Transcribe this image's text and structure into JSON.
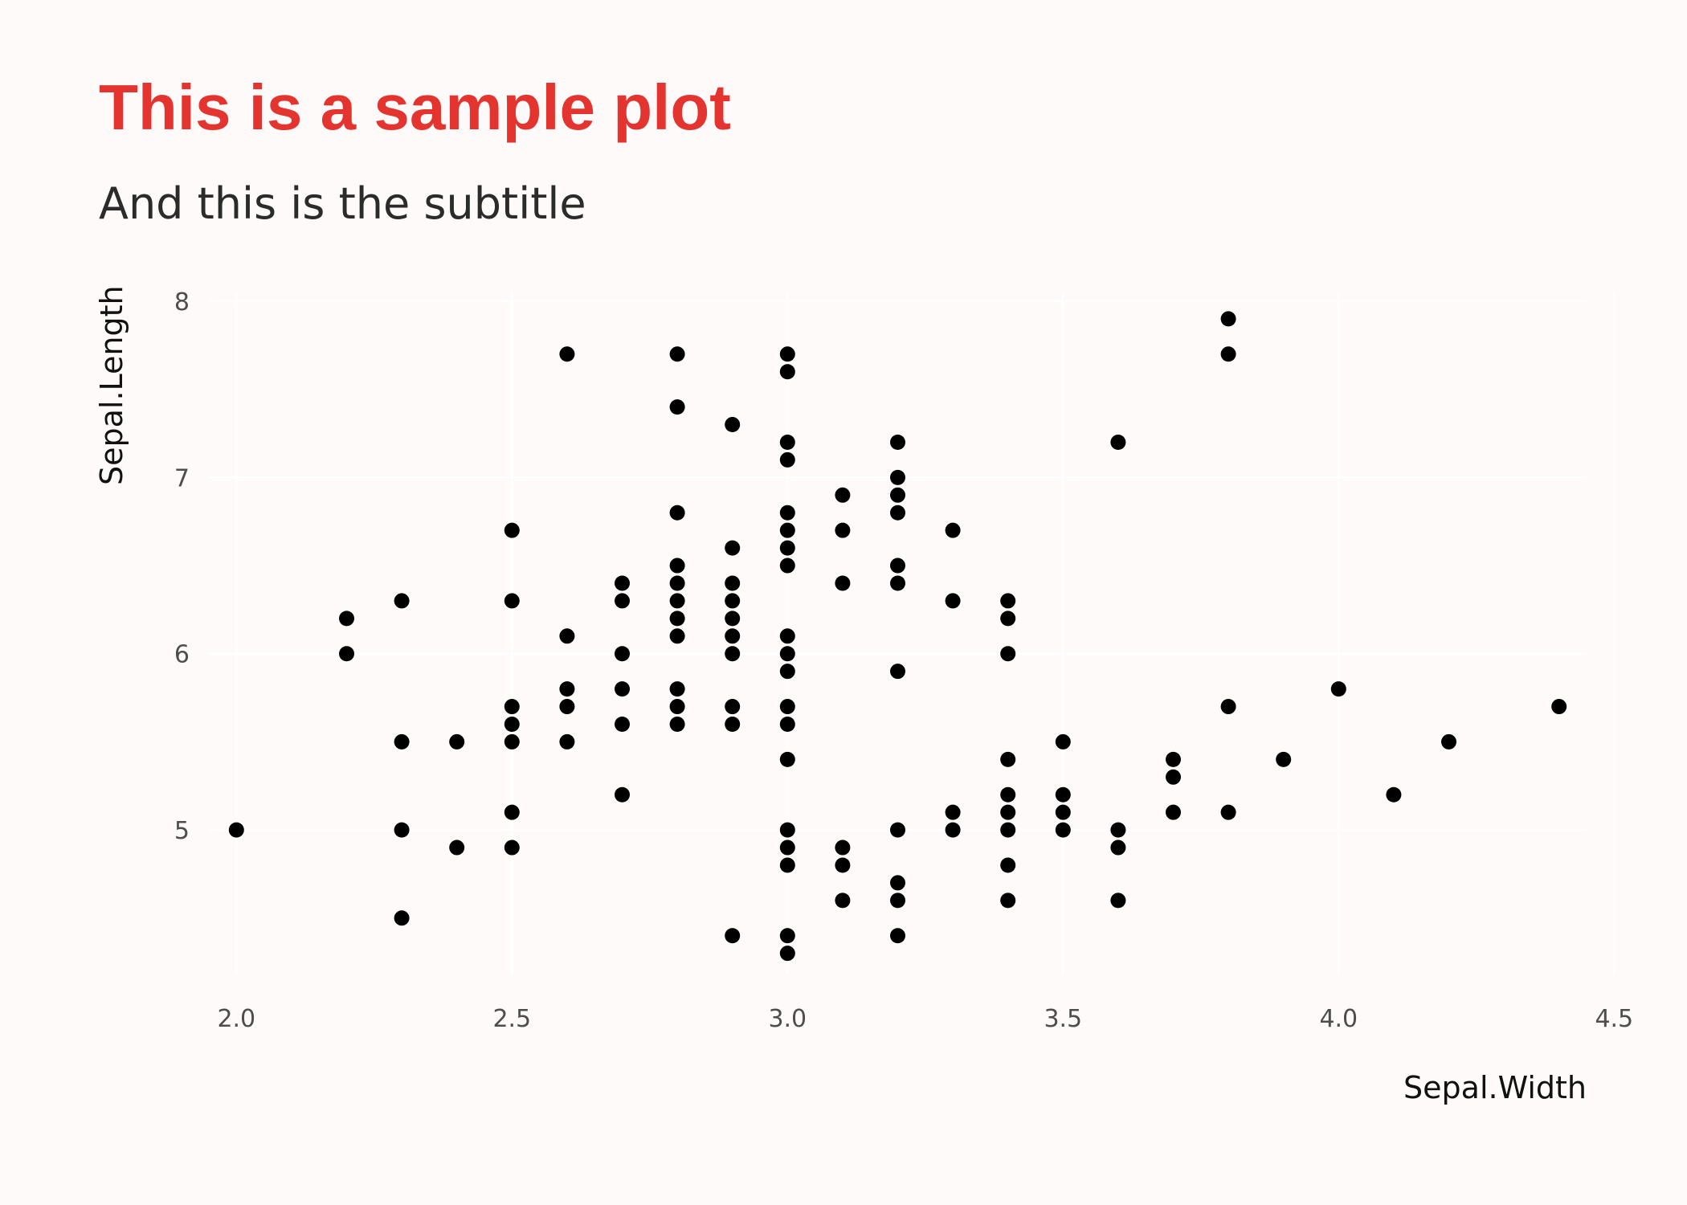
{
  "chart_data": {
    "type": "scatter",
    "title": "This is a sample plot",
    "subtitle": "And this is the subtitle",
    "xlabel": "Sepal.Width",
    "ylabel": "Sepal.Length",
    "xlim": [
      1.95,
      4.45
    ],
    "ylim": [
      4.18,
      8.05
    ],
    "xticks": [
      2.0,
      2.5,
      3.0,
      3.5,
      4.0,
      4.5
    ],
    "xtick_labels": [
      "2.0",
      "2.5",
      "3.0",
      "3.5",
      "4.0",
      "4.5"
    ],
    "yticks": [
      5,
      6,
      7,
      8
    ],
    "ytick_labels": [
      "5",
      "6",
      "7",
      "8"
    ],
    "grid": true,
    "legend": "none",
    "colors": {
      "title": "#e3342f",
      "subtitle": "#2b2b2b",
      "point": "#000000",
      "background": "#fdfaf9",
      "grid": "#ffffff"
    },
    "points": [
      [
        2.0,
        5.0
      ],
      [
        2.2,
        6.2
      ],
      [
        2.2,
        6.0
      ],
      [
        2.3,
        6.3
      ],
      [
        2.3,
        5.5
      ],
      [
        2.3,
        5.0
      ],
      [
        2.3,
        4.5
      ],
      [
        2.4,
        5.5
      ],
      [
        2.4,
        4.9
      ],
      [
        2.5,
        6.7
      ],
      [
        2.5,
        6.3
      ],
      [
        2.5,
        5.7
      ],
      [
        2.5,
        5.6
      ],
      [
        2.5,
        5.5
      ],
      [
        2.5,
        5.1
      ],
      [
        2.5,
        4.9
      ],
      [
        2.6,
        7.7
      ],
      [
        2.6,
        6.1
      ],
      [
        2.6,
        5.8
      ],
      [
        2.6,
        5.7
      ],
      [
        2.6,
        5.5
      ],
      [
        2.7,
        6.4
      ],
      [
        2.7,
        6.3
      ],
      [
        2.7,
        6.0
      ],
      [
        2.7,
        5.8
      ],
      [
        2.7,
        5.6
      ],
      [
        2.7,
        5.2
      ],
      [
        2.8,
        7.7
      ],
      [
        2.8,
        7.4
      ],
      [
        2.8,
        6.8
      ],
      [
        2.8,
        6.5
      ],
      [
        2.8,
        6.4
      ],
      [
        2.8,
        6.3
      ],
      [
        2.8,
        6.2
      ],
      [
        2.8,
        6.1
      ],
      [
        2.8,
        5.8
      ],
      [
        2.8,
        5.7
      ],
      [
        2.8,
        5.6
      ],
      [
        2.9,
        7.3
      ],
      [
        2.9,
        6.6
      ],
      [
        2.9,
        6.4
      ],
      [
        2.9,
        6.3
      ],
      [
        2.9,
        6.2
      ],
      [
        2.9,
        6.1
      ],
      [
        2.9,
        6.0
      ],
      [
        2.9,
        5.7
      ],
      [
        2.9,
        5.6
      ],
      [
        2.9,
        4.4
      ],
      [
        3.0,
        7.7
      ],
      [
        3.0,
        7.6
      ],
      [
        3.0,
        7.2
      ],
      [
        3.0,
        7.1
      ],
      [
        3.0,
        6.8
      ],
      [
        3.0,
        6.7
      ],
      [
        3.0,
        6.6
      ],
      [
        3.0,
        6.5
      ],
      [
        3.0,
        6.1
      ],
      [
        3.0,
        6.0
      ],
      [
        3.0,
        5.9
      ],
      [
        3.0,
        5.7
      ],
      [
        3.0,
        5.6
      ],
      [
        3.0,
        5.4
      ],
      [
        3.0,
        5.0
      ],
      [
        3.0,
        4.9
      ],
      [
        3.0,
        4.8
      ],
      [
        3.0,
        4.4
      ],
      [
        3.0,
        4.3
      ],
      [
        3.1,
        6.9
      ],
      [
        3.1,
        6.7
      ],
      [
        3.1,
        6.4
      ],
      [
        3.1,
        4.9
      ],
      [
        3.1,
        4.8
      ],
      [
        3.1,
        4.6
      ],
      [
        3.2,
        7.2
      ],
      [
        3.2,
        7.0
      ],
      [
        3.2,
        6.9
      ],
      [
        3.2,
        6.8
      ],
      [
        3.2,
        6.5
      ],
      [
        3.2,
        6.4
      ],
      [
        3.2,
        5.9
      ],
      [
        3.2,
        5.0
      ],
      [
        3.2,
        4.7
      ],
      [
        3.2,
        4.6
      ],
      [
        3.2,
        4.4
      ],
      [
        3.3,
        6.7
      ],
      [
        3.3,
        6.3
      ],
      [
        3.3,
        5.1
      ],
      [
        3.3,
        5.0
      ],
      [
        3.4,
        6.3
      ],
      [
        3.4,
        6.2
      ],
      [
        3.4,
        6.0
      ],
      [
        3.4,
        5.4
      ],
      [
        3.4,
        5.2
      ],
      [
        3.4,
        5.1
      ],
      [
        3.4,
        5.0
      ],
      [
        3.4,
        4.8
      ],
      [
        3.4,
        4.6
      ],
      [
        3.5,
        5.5
      ],
      [
        3.5,
        5.2
      ],
      [
        3.5,
        5.1
      ],
      [
        3.5,
        5.0
      ],
      [
        3.6,
        7.2
      ],
      [
        3.6,
        5.0
      ],
      [
        3.6,
        4.9
      ],
      [
        3.6,
        4.6
      ],
      [
        3.7,
        5.4
      ],
      [
        3.7,
        5.3
      ],
      [
        3.7,
        5.1
      ],
      [
        3.8,
        7.9
      ],
      [
        3.8,
        7.7
      ],
      [
        3.8,
        5.7
      ],
      [
        3.8,
        5.1
      ],
      [
        3.9,
        5.4
      ],
      [
        4.0,
        5.8
      ],
      [
        4.1,
        5.2
      ],
      [
        4.2,
        5.5
      ],
      [
        4.4,
        5.7
      ]
    ]
  }
}
